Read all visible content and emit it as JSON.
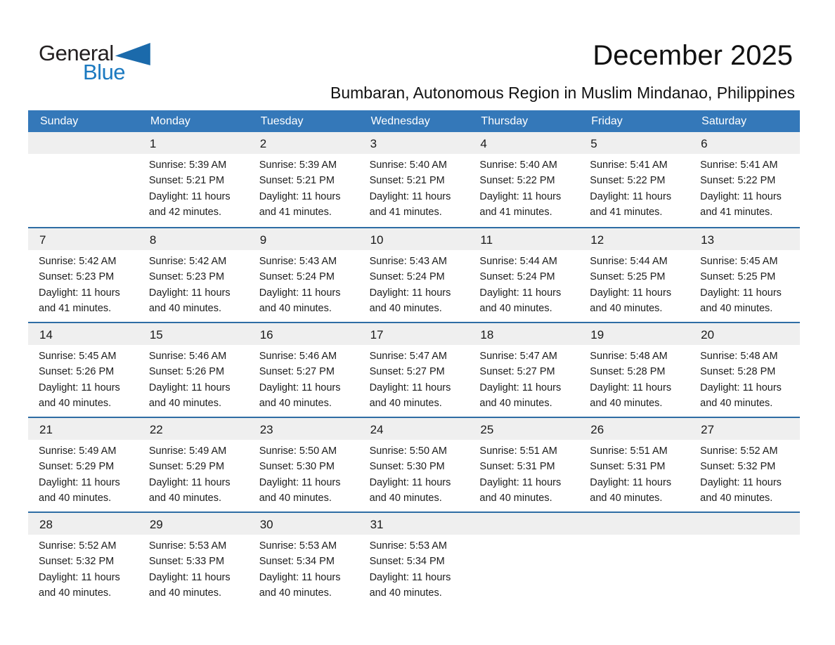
{
  "logo": {
    "general": "General",
    "blue": "Blue",
    "triangle_icon": "blue-triangle"
  },
  "header": {
    "title": "December 2025",
    "subtitle": "Bumbaran, Autonomous Region in Muslim Mindanao, Philippines"
  },
  "colors": {
    "day_header_bg": "#3478b9",
    "week_divider": "#2e6da4",
    "day_number_band": "#efefef",
    "logo_blue": "#1b79c0",
    "logo_triangle": "#1b6aab",
    "text": "#1c1c1c"
  },
  "calendar": {
    "day_headers": [
      "Sunday",
      "Monday",
      "Tuesday",
      "Wednesday",
      "Thursday",
      "Friday",
      "Saturday"
    ],
    "weeks": [
      [
        null,
        {
          "day": "1",
          "sunrise": "Sunrise: 5:39 AM",
          "sunset": "Sunset: 5:21 PM",
          "daylight": "Daylight: 11 hours and 42 minutes."
        },
        {
          "day": "2",
          "sunrise": "Sunrise: 5:39 AM",
          "sunset": "Sunset: 5:21 PM",
          "daylight": "Daylight: 11 hours and 41 minutes."
        },
        {
          "day": "3",
          "sunrise": "Sunrise: 5:40 AM",
          "sunset": "Sunset: 5:21 PM",
          "daylight": "Daylight: 11 hours and 41 minutes."
        },
        {
          "day": "4",
          "sunrise": "Sunrise: 5:40 AM",
          "sunset": "Sunset: 5:22 PM",
          "daylight": "Daylight: 11 hours and 41 minutes."
        },
        {
          "day": "5",
          "sunrise": "Sunrise: 5:41 AM",
          "sunset": "Sunset: 5:22 PM",
          "daylight": "Daylight: 11 hours and 41 minutes."
        },
        {
          "day": "6",
          "sunrise": "Sunrise: 5:41 AM",
          "sunset": "Sunset: 5:22 PM",
          "daylight": "Daylight: 11 hours and 41 minutes."
        }
      ],
      [
        {
          "day": "7",
          "sunrise": "Sunrise: 5:42 AM",
          "sunset": "Sunset: 5:23 PM",
          "daylight": "Daylight: 11 hours and 41 minutes."
        },
        {
          "day": "8",
          "sunrise": "Sunrise: 5:42 AM",
          "sunset": "Sunset: 5:23 PM",
          "daylight": "Daylight: 11 hours and 40 minutes."
        },
        {
          "day": "9",
          "sunrise": "Sunrise: 5:43 AM",
          "sunset": "Sunset: 5:24 PM",
          "daylight": "Daylight: 11 hours and 40 minutes."
        },
        {
          "day": "10",
          "sunrise": "Sunrise: 5:43 AM",
          "sunset": "Sunset: 5:24 PM",
          "daylight": "Daylight: 11 hours and 40 minutes."
        },
        {
          "day": "11",
          "sunrise": "Sunrise: 5:44 AM",
          "sunset": "Sunset: 5:24 PM",
          "daylight": "Daylight: 11 hours and 40 minutes."
        },
        {
          "day": "12",
          "sunrise": "Sunrise: 5:44 AM",
          "sunset": "Sunset: 5:25 PM",
          "daylight": "Daylight: 11 hours and 40 minutes."
        },
        {
          "day": "13",
          "sunrise": "Sunrise: 5:45 AM",
          "sunset": "Sunset: 5:25 PM",
          "daylight": "Daylight: 11 hours and 40 minutes."
        }
      ],
      [
        {
          "day": "14",
          "sunrise": "Sunrise: 5:45 AM",
          "sunset": "Sunset: 5:26 PM",
          "daylight": "Daylight: 11 hours and 40 minutes."
        },
        {
          "day": "15",
          "sunrise": "Sunrise: 5:46 AM",
          "sunset": "Sunset: 5:26 PM",
          "daylight": "Daylight: 11 hours and 40 minutes."
        },
        {
          "day": "16",
          "sunrise": "Sunrise: 5:46 AM",
          "sunset": "Sunset: 5:27 PM",
          "daylight": "Daylight: 11 hours and 40 minutes."
        },
        {
          "day": "17",
          "sunrise": "Sunrise: 5:47 AM",
          "sunset": "Sunset: 5:27 PM",
          "daylight": "Daylight: 11 hours and 40 minutes."
        },
        {
          "day": "18",
          "sunrise": "Sunrise: 5:47 AM",
          "sunset": "Sunset: 5:27 PM",
          "daylight": "Daylight: 11 hours and 40 minutes."
        },
        {
          "day": "19",
          "sunrise": "Sunrise: 5:48 AM",
          "sunset": "Sunset: 5:28 PM",
          "daylight": "Daylight: 11 hours and 40 minutes."
        },
        {
          "day": "20",
          "sunrise": "Sunrise: 5:48 AM",
          "sunset": "Sunset: 5:28 PM",
          "daylight": "Daylight: 11 hours and 40 minutes."
        }
      ],
      [
        {
          "day": "21",
          "sunrise": "Sunrise: 5:49 AM",
          "sunset": "Sunset: 5:29 PM",
          "daylight": "Daylight: 11 hours and 40 minutes."
        },
        {
          "day": "22",
          "sunrise": "Sunrise: 5:49 AM",
          "sunset": "Sunset: 5:29 PM",
          "daylight": "Daylight: 11 hours and 40 minutes."
        },
        {
          "day": "23",
          "sunrise": "Sunrise: 5:50 AM",
          "sunset": "Sunset: 5:30 PM",
          "daylight": "Daylight: 11 hours and 40 minutes."
        },
        {
          "day": "24",
          "sunrise": "Sunrise: 5:50 AM",
          "sunset": "Sunset: 5:30 PM",
          "daylight": "Daylight: 11 hours and 40 minutes."
        },
        {
          "day": "25",
          "sunrise": "Sunrise: 5:51 AM",
          "sunset": "Sunset: 5:31 PM",
          "daylight": "Daylight: 11 hours and 40 minutes."
        },
        {
          "day": "26",
          "sunrise": "Sunrise: 5:51 AM",
          "sunset": "Sunset: 5:31 PM",
          "daylight": "Daylight: 11 hours and 40 minutes."
        },
        {
          "day": "27",
          "sunrise": "Sunrise: 5:52 AM",
          "sunset": "Sunset: 5:32 PM",
          "daylight": "Daylight: 11 hours and 40 minutes."
        }
      ],
      [
        {
          "day": "28",
          "sunrise": "Sunrise: 5:52 AM",
          "sunset": "Sunset: 5:32 PM",
          "daylight": "Daylight: 11 hours and 40 minutes."
        },
        {
          "day": "29",
          "sunrise": "Sunrise: 5:53 AM",
          "sunset": "Sunset: 5:33 PM",
          "daylight": "Daylight: 11 hours and 40 minutes."
        },
        {
          "day": "30",
          "sunrise": "Sunrise: 5:53 AM",
          "sunset": "Sunset: 5:34 PM",
          "daylight": "Daylight: 11 hours and 40 minutes."
        },
        {
          "day": "31",
          "sunrise": "Sunrise: 5:53 AM",
          "sunset": "Sunset: 5:34 PM",
          "daylight": "Daylight: 11 hours and 40 minutes."
        },
        null,
        null,
        null
      ]
    ]
  }
}
